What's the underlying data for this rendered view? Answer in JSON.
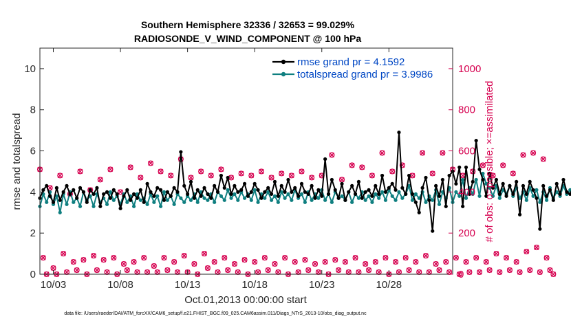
{
  "chart_data": {
    "type": "line",
    "title": "Southern Hemisphere 32336 / 32653 = 99.029%",
    "subtitle": "RADIOSONDE_V_WIND_COMPONENT @ 100 hPa",
    "xlabel": "Oct.01,2013 00:00:00 start",
    "ylabel_left": "rmse and totalspread",
    "ylabel_right": "# of obs: o=possible; ×=assimilated",
    "x_ticks": [
      "10/03",
      "10/08",
      "10/13",
      "10/18",
      "10/23",
      "10/28"
    ],
    "x_tick_days": [
      2,
      7,
      12,
      17,
      22,
      27
    ],
    "xlim": [
      1.0,
      31.75
    ],
    "ylim_left": [
      0,
      11
    ],
    "yticks_left": [
      "0",
      "2",
      "4",
      "6",
      "8",
      "10"
    ],
    "ylim_right": [
      0,
      1100
    ],
    "yticks_right": [
      "0",
      "200",
      "400",
      "600",
      "800",
      "1000"
    ],
    "legend_location": "top-right",
    "series": [
      {
        "name": "rmse grand pr = 4.1592",
        "color": "#000000",
        "axis": "left",
        "x_start": 1.0,
        "x_step": 0.25,
        "values": [
          3.7,
          4.1,
          4.3,
          3.8,
          3.5,
          4.2,
          3.6,
          4.0,
          4.3,
          3.9,
          4.1,
          3.7,
          4.2,
          4.0,
          3.5,
          4.1,
          3.9,
          4.2,
          3.3,
          3.9,
          4.0,
          3.7,
          4.1,
          3.9,
          3.2,
          3.8,
          4.1,
          3.6,
          3.9,
          3.7,
          4.1,
          3.5,
          4.4,
          4.0,
          3.8,
          4.2,
          4.1,
          3.6,
          4.0,
          3.8,
          4.2,
          4.0,
          5.95,
          4.3,
          3.9,
          4.5,
          3.7,
          4.1,
          3.8,
          4.2,
          3.9,
          3.7,
          4.3,
          4.0,
          4.8,
          4.2,
          4.7,
          3.9,
          4.3,
          4.0,
          4.1,
          4.4,
          3.8,
          4.0,
          4.4,
          4.1,
          3.7,
          4.0,
          4.2,
          3.9,
          4.5,
          3.8,
          4.3,
          4.0,
          4.6,
          4.0,
          4.2,
          3.8,
          4.4,
          4.0,
          3.9,
          4.3,
          3.7,
          4.1,
          3.8,
          5.6,
          3.9,
          4.6,
          4.1,
          3.7,
          4.4,
          3.6,
          4.0,
          4.3,
          3.9,
          4.5,
          3.7,
          4.0,
          4.1,
          3.8,
          4.3,
          3.9,
          4.8,
          4.0,
          4.2,
          4.4,
          4.1,
          6.9,
          4.2,
          3.9,
          4.8,
          3.9,
          3.5,
          3.0,
          4.2,
          4.7,
          3.6,
          2.1,
          4.3,
          3.8,
          4.6,
          3.3,
          4.8,
          5.0,
          4.4,
          5.2,
          3.3,
          5.2,
          3.9,
          4.5,
          6.5,
          5.1,
          4.6,
          3.8,
          4.9,
          4.2,
          4.6,
          3.9,
          4.4,
          3.8,
          4.3,
          3.9,
          4.5,
          2.9,
          4.3,
          3.9,
          4.5,
          4.1,
          3.7,
          2.2,
          4.3,
          3.8,
          4.1,
          3.6,
          4.4,
          3.9,
          4.6,
          4.0,
          3.9,
          4.3,
          4.7,
          4.3,
          3.6
        ]
      },
      {
        "name": "totalspread grand pr = 3.9986",
        "color": "#0f7f80",
        "axis": "left",
        "x_start": 1.0,
        "x_step": 0.25,
        "values": [
          3.3,
          3.9,
          3.5,
          4.0,
          3.4,
          3.8,
          3.0,
          3.9,
          3.4,
          4.0,
          3.5,
          3.7,
          3.3,
          4.0,
          3.6,
          3.8,
          3.3,
          3.9,
          3.5,
          3.7,
          3.4,
          4.0,
          3.6,
          3.8,
          3.4,
          3.9,
          3.5,
          3.8,
          3.3,
          3.9,
          3.6,
          3.7,
          3.4,
          3.9,
          3.5,
          3.8,
          3.3,
          4.0,
          3.6,
          3.8,
          3.4,
          3.9,
          3.7,
          3.5,
          3.8,
          3.6,
          3.9,
          3.5,
          4.0,
          3.7,
          3.6,
          3.9,
          3.5,
          4.0,
          3.8,
          3.6,
          4.1,
          3.7,
          3.9,
          3.6,
          4.0,
          3.7,
          3.9,
          3.6,
          4.1,
          3.5,
          3.9,
          3.7,
          4.0,
          3.6,
          3.8,
          3.5,
          4.0,
          3.7,
          3.9,
          3.6,
          4.1,
          3.7,
          3.9,
          3.5,
          4.0,
          3.6,
          3.9,
          3.7,
          4.1,
          3.6,
          3.9,
          3.5,
          4.0,
          3.7,
          3.8,
          3.6,
          4.0,
          3.5,
          3.9,
          3.7,
          4.0,
          3.6,
          3.8,
          3.5,
          3.9,
          3.7,
          4.0,
          3.6,
          4.1,
          3.8,
          3.6,
          4.0,
          3.7,
          3.9,
          4.3,
          3.6,
          3.9,
          3.7,
          4.0,
          3.5,
          3.8,
          3.6,
          4.1,
          3.4,
          4.0,
          3.7,
          4.2,
          3.5,
          4.0,
          3.8,
          4.6,
          3.7,
          4.2,
          3.9,
          4.6,
          3.8,
          4.9,
          4.4,
          4.2,
          3.8,
          4.3,
          3.7,
          4.1,
          3.9,
          4.3,
          3.8,
          4.2,
          3.7,
          4.0,
          3.6,
          4.2,
          3.8,
          4.1,
          3.5,
          4.0,
          3.6,
          4.2,
          3.7,
          4.0,
          3.8,
          4.3,
          3.9,
          4.1,
          3.7,
          4.3,
          4.0,
          3.9,
          4.3,
          3.5
        ]
      },
      {
        "name": "possible",
        "marker": "o",
        "color": "#d6004f",
        "axis": "right",
        "x_start": 1.0,
        "x_step": 0.25,
        "values": [
          510,
          80,
          0,
          420,
          30,
          0,
          480,
          100,
          10,
          390,
          60,
          20,
          500,
          70,
          0,
          410,
          90,
          20,
          460,
          70,
          10,
          510,
          80,
          0,
          400,
          50,
          20,
          520,
          60,
          10,
          470,
          80,
          10,
          540,
          40,
          10,
          500,
          80,
          20,
          480,
          60,
          10,
          560,
          90,
          10,
          470,
          50,
          0,
          500,
          100,
          30,
          480,
          60,
          10,
          510,
          80,
          20,
          470,
          50,
          10,
          490,
          70,
          0,
          480,
          60,
          10,
          500,
          80,
          20,
          470,
          50,
          10,
          490,
          80,
          0,
          480,
          60,
          10,
          500,
          70,
          20,
          470,
          50,
          10,
          480,
          60,
          0,
          580,
          70,
          20,
          460,
          60,
          10,
          530,
          80,
          10,
          520,
          50,
          20,
          480,
          60,
          10,
          590,
          80,
          0,
          500,
          60,
          10,
          530,
          80,
          20,
          480,
          60,
          10,
          590,
          90,
          10,
          490,
          50,
          20,
          590,
          60,
          10,
          510,
          80,
          0,
          480,
          60,
          10,
          500,
          80,
          10,
          530,
          60,
          20,
          480,
          100,
          10,
          530,
          80,
          20,
          490,
          60,
          10,
          580,
          110,
          20,
          590,
          130,
          10,
          560,
          80,
          20,
          0
        ]
      },
      {
        "name": "assimilated",
        "marker": "x",
        "color": "#d6004f",
        "axis": "right",
        "x_start": 1.0,
        "x_step": 0.25,
        "values": [
          510,
          80,
          0,
          420,
          30,
          0,
          480,
          100,
          10,
          390,
          60,
          20,
          500,
          70,
          0,
          410,
          90,
          20,
          460,
          70,
          10,
          510,
          80,
          0,
          400,
          50,
          20,
          520,
          60,
          10,
          470,
          80,
          10,
          540,
          40,
          10,
          500,
          80,
          20,
          480,
          60,
          10,
          560,
          90,
          10,
          470,
          50,
          0,
          500,
          100,
          30,
          480,
          60,
          10,
          510,
          80,
          20,
          470,
          50,
          10,
          490,
          70,
          0,
          480,
          60,
          10,
          500,
          80,
          20,
          470,
          50,
          10,
          490,
          80,
          0,
          480,
          60,
          10,
          500,
          70,
          20,
          470,
          50,
          10,
          480,
          60,
          0,
          580,
          70,
          20,
          460,
          60,
          10,
          530,
          80,
          10,
          520,
          50,
          20,
          480,
          60,
          10,
          590,
          80,
          0,
          500,
          60,
          10,
          530,
          80,
          20,
          480,
          60,
          10,
          590,
          90,
          10,
          490,
          50,
          20,
          590,
          60,
          10,
          510,
          80,
          0,
          480,
          60,
          10,
          500,
          80,
          10,
          530,
          60,
          20,
          480,
          100,
          10,
          530,
          80,
          20,
          490,
          60,
          10,
          580,
          110,
          20,
          590,
          130,
          10,
          560,
          80,
          20,
          0
        ]
      }
    ],
    "footnote": "data file: /Users/raeder/DAI/ATM_forcXX/CAM6_setup/f.e21.FHIST_BGC.f09_025.CAM6assim.011/Diags_NTrS_2013-10/obs_diag_output.nc"
  }
}
